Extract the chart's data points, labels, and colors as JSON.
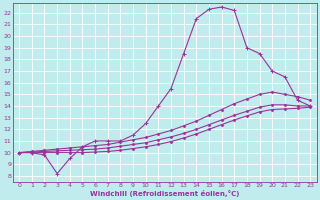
{
  "xlabel": "Windchill (Refroidissement éolien,°C)",
  "bg_color": "#c0ecee",
  "grid_color": "#ffffff",
  "line_color": "#993399",
  "xlim": [
    -0.5,
    23.5
  ],
  "ylim": [
    7.5,
    22.8
  ],
  "xticks": [
    0,
    1,
    2,
    3,
    4,
    5,
    6,
    7,
    8,
    9,
    10,
    11,
    12,
    13,
    14,
    15,
    16,
    17,
    18,
    19,
    20,
    21,
    22,
    23
  ],
  "yticks": [
    8,
    9,
    10,
    11,
    12,
    13,
    14,
    15,
    16,
    17,
    18,
    19,
    20,
    21,
    22
  ],
  "curve1_x": [
    0,
    1,
    2,
    3,
    4,
    5,
    6,
    7,
    8,
    9,
    10,
    11,
    12,
    13,
    14,
    15,
    16,
    17,
    18,
    19,
    20,
    21,
    22,
    23
  ],
  "curve1_y": [
    10.0,
    10.0,
    9.8,
    8.2,
    9.5,
    10.5,
    11.0,
    11.0,
    11.0,
    11.5,
    12.5,
    14.0,
    15.5,
    18.5,
    21.5,
    22.3,
    22.5,
    22.2,
    19.0,
    18.5,
    17.0,
    16.5,
    14.5,
    14.0
  ],
  "curve2_x": [
    0,
    1,
    2,
    3,
    4,
    5,
    6,
    7,
    8,
    9,
    10,
    11,
    12,
    13,
    14,
    15,
    16,
    17,
    18,
    19,
    20,
    21,
    22,
    23
  ],
  "curve2_y": [
    10.0,
    10.1,
    10.2,
    10.3,
    10.4,
    10.5,
    10.6,
    10.7,
    10.9,
    11.1,
    11.3,
    11.6,
    11.9,
    12.3,
    12.7,
    13.2,
    13.7,
    14.2,
    14.6,
    15.0,
    15.2,
    15.0,
    14.8,
    14.5
  ],
  "curve3_x": [
    0,
    1,
    2,
    3,
    4,
    5,
    6,
    7,
    8,
    9,
    10,
    11,
    12,
    13,
    14,
    15,
    16,
    17,
    18,
    19,
    20,
    21,
    22,
    23
  ],
  "curve3_y": [
    10.0,
    10.05,
    10.1,
    10.15,
    10.2,
    10.25,
    10.3,
    10.4,
    10.55,
    10.7,
    10.85,
    11.1,
    11.35,
    11.65,
    12.0,
    12.4,
    12.8,
    13.2,
    13.55,
    13.9,
    14.1,
    14.1,
    14.0,
    14.0
  ],
  "curve4_x": [
    0,
    1,
    2,
    3,
    4,
    5,
    6,
    7,
    8,
    9,
    10,
    11,
    12,
    13,
    14,
    15,
    16,
    17,
    18,
    19,
    20,
    21,
    22,
    23
  ],
  "curve4_y": [
    10.0,
    10.0,
    10.0,
    10.0,
    10.0,
    10.0,
    10.05,
    10.1,
    10.2,
    10.35,
    10.5,
    10.7,
    10.95,
    11.25,
    11.6,
    12.0,
    12.4,
    12.8,
    13.15,
    13.5,
    13.7,
    13.75,
    13.8,
    13.9
  ]
}
